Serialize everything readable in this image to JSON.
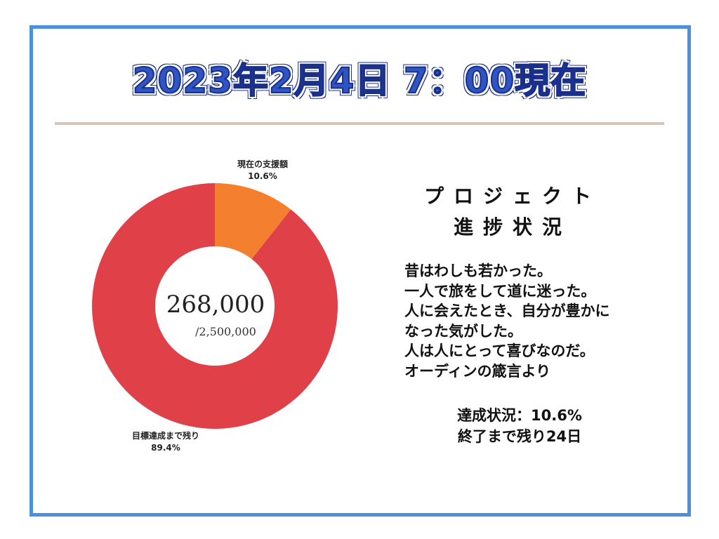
{
  "header": {
    "title": "2023年2月4日 7：00現在"
  },
  "colors": {
    "frame": "#4a90dc",
    "title_fill": "#2f55c4",
    "rule": "#d9c3b8",
    "raised": "#f47f2e",
    "remaining": "#e04048"
  },
  "chart_data": {
    "type": "pie",
    "donut": true,
    "slices": [
      {
        "name": "現在の支援額",
        "value": 10.6,
        "label": "10.6%"
      },
      {
        "name": "目標達成まで残り",
        "value": 89.4,
        "label": "89.4%"
      }
    ],
    "center_total": "268,000",
    "center_goal": "/2,500,000"
  },
  "project": {
    "title_line1": "プロジェクト",
    "title_line2": "進捗状況",
    "quote": [
      "昔はわしも若かった。",
      "一人で旅をして道に迷った。",
      "人に会えたとき、自分が豊かに",
      "なった気がした。",
      "人は人にとって喜びなのだ。",
      "オーディンの箴言より"
    ],
    "status_rate": "達成状況：10.6%",
    "status_remaining": "終了まで残り24日"
  }
}
